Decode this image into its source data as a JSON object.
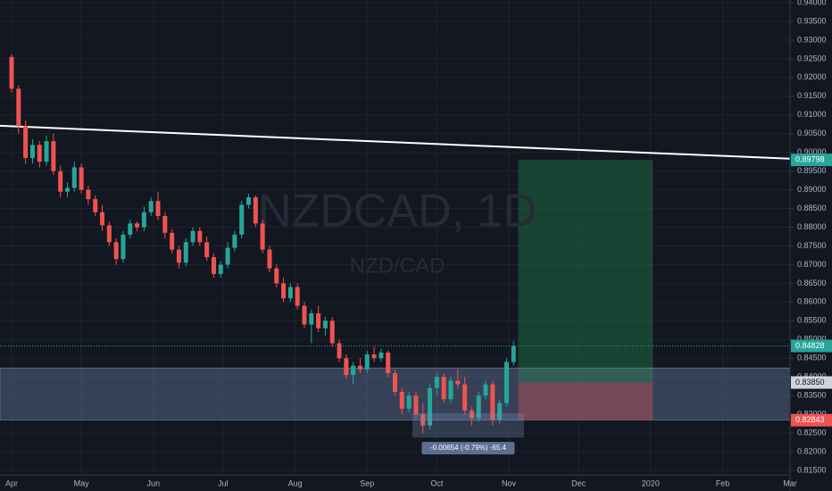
{
  "chart_data": {
    "type": "candlestick",
    "watermark": "NZDCAD, 1D",
    "watermark_sub": "NZD/CAD",
    "up_color": "#26a69a",
    "down_color": "#ef5350",
    "grid": true,
    "xlim": [
      -5,
      335
    ],
    "ylim": [
      0.815,
      0.94
    ],
    "xticks": [
      {
        "value": 0,
        "label": "Apr"
      },
      {
        "value": 30,
        "label": "May"
      },
      {
        "value": 61,
        "label": "Jun"
      },
      {
        "value": 91,
        "label": "Jul"
      },
      {
        "value": 122,
        "label": "Aug"
      },
      {
        "value": 153,
        "label": "Sep"
      },
      {
        "value": 183,
        "label": "Oct"
      },
      {
        "value": 214,
        "label": "Nov"
      },
      {
        "value": 244,
        "label": "Dec"
      },
      {
        "value": 275,
        "label": "2020"
      },
      {
        "value": 306,
        "label": "Feb"
      },
      {
        "value": 335,
        "label": "Mar"
      }
    ],
    "yticks": [
      {
        "value": 0.815,
        "label": "0.81500"
      },
      {
        "value": 0.82,
        "label": "0.82000"
      },
      {
        "value": 0.825,
        "label": "0.82500"
      },
      {
        "value": 0.83,
        "label": "0.83000"
      },
      {
        "value": 0.835,
        "label": "0.83500"
      },
      {
        "value": 0.84,
        "label": "0.84000"
      },
      {
        "value": 0.845,
        "label": "0.84500"
      },
      {
        "value": 0.85,
        "label": "0.85000"
      },
      {
        "value": 0.855,
        "label": "0.85500"
      },
      {
        "value": 0.86,
        "label": "0.86000"
      },
      {
        "value": 0.865,
        "label": "0.86500"
      },
      {
        "value": 0.87,
        "label": "0.87000"
      },
      {
        "value": 0.875,
        "label": "0.87500"
      },
      {
        "value": 0.88,
        "label": "0.88000"
      },
      {
        "value": 0.885,
        "label": "0.88500"
      },
      {
        "value": 0.89,
        "label": "0.89000"
      },
      {
        "value": 0.895,
        "label": "0.89500"
      },
      {
        "value": 0.9,
        "label": "0.90000"
      },
      {
        "value": 0.905,
        "label": "0.90500"
      },
      {
        "value": 0.91,
        "label": "0.91000"
      },
      {
        "value": 0.915,
        "label": "0.91500"
      },
      {
        "value": 0.92,
        "label": "0.92000"
      },
      {
        "value": 0.925,
        "label": "0.92500"
      },
      {
        "value": 0.93,
        "label": "0.93000"
      },
      {
        "value": 0.935,
        "label": "0.93500"
      },
      {
        "value": 0.94,
        "label": "0.94000"
      }
    ],
    "x": [
      0,
      3,
      6,
      9,
      12,
      15,
      18,
      21,
      24,
      27,
      30,
      33,
      36,
      39,
      42,
      45,
      48,
      51,
      54,
      57,
      60,
      63,
      66,
      69,
      72,
      75,
      78,
      81,
      84,
      87,
      90,
      93,
      96,
      99,
      102,
      105,
      108,
      111,
      114,
      117,
      120,
      123,
      126,
      129,
      132,
      135,
      138,
      141,
      144,
      147,
      150,
      153,
      156,
      159,
      162,
      165,
      168,
      171,
      174,
      177,
      180,
      183,
      186,
      189,
      192,
      195,
      198,
      201,
      204,
      207,
      210,
      213,
      216
    ],
    "open": [
      0.9255,
      0.917,
      0.907,
      0.8985,
      0.902,
      0.8975,
      0.903,
      0.895,
      0.8895,
      0.8905,
      0.896,
      0.89,
      0.8875,
      0.884,
      0.8805,
      0.876,
      0.8715,
      0.878,
      0.881,
      0.88,
      0.884,
      0.887,
      0.883,
      0.8785,
      0.874,
      0.8705,
      0.876,
      0.879,
      0.876,
      0.872,
      0.8675,
      0.87,
      0.8745,
      0.878,
      0.886,
      0.888,
      0.881,
      0.874,
      0.869,
      0.865,
      0.861,
      0.864,
      0.859,
      0.854,
      0.857,
      0.853,
      0.855,
      0.849,
      0.845,
      0.8405,
      0.843,
      0.842,
      0.846,
      0.845,
      0.8465,
      0.841,
      0.836,
      0.8315,
      0.835,
      0.83,
      0.827,
      0.837,
      0.84,
      0.834,
      0.839,
      0.838,
      0.831,
      0.829,
      0.835,
      0.838,
      0.8285,
      0.833,
      0.844
    ],
    "high": [
      0.9262,
      0.918,
      0.9085,
      0.9035,
      0.903,
      0.9045,
      0.905,
      0.8965,
      0.892,
      0.8975,
      0.897,
      0.891,
      0.8885,
      0.886,
      0.8815,
      0.877,
      0.879,
      0.882,
      0.8815,
      0.8855,
      0.888,
      0.8895,
      0.884,
      0.8795,
      0.875,
      0.877,
      0.88,
      0.88,
      0.8775,
      0.873,
      0.871,
      0.876,
      0.879,
      0.887,
      0.889,
      0.8885,
      0.882,
      0.875,
      0.87,
      0.8665,
      0.865,
      0.865,
      0.86,
      0.858,
      0.859,
      0.856,
      0.856,
      0.85,
      0.846,
      0.844,
      0.845,
      0.847,
      0.848,
      0.8475,
      0.847,
      0.842,
      0.837,
      0.836,
      0.836,
      0.833,
      0.838,
      0.841,
      0.841,
      0.84,
      0.842,
      0.84,
      0.832,
      0.836,
      0.839,
      0.839,
      0.834,
      0.845,
      0.8495
    ],
    "low": [
      0.916,
      0.905,
      0.897,
      0.897,
      0.896,
      0.8965,
      0.894,
      0.888,
      0.888,
      0.8895,
      0.889,
      0.886,
      0.883,
      0.879,
      0.875,
      0.87,
      0.8705,
      0.877,
      0.879,
      0.879,
      0.883,
      0.882,
      0.877,
      0.873,
      0.869,
      0.8695,
      0.875,
      0.875,
      0.871,
      0.8665,
      0.8665,
      0.869,
      0.8735,
      0.877,
      0.885,
      0.88,
      0.873,
      0.868,
      0.864,
      0.86,
      0.86,
      0.858,
      0.853,
      0.849,
      0.852,
      0.851,
      0.848,
      0.844,
      0.8395,
      0.838,
      0.841,
      0.841,
      0.844,
      0.844,
      0.84,
      0.835,
      0.83,
      0.8305,
      0.829,
      0.825,
      0.826,
      0.835,
      0.833,
      0.833,
      0.837,
      0.83,
      0.827,
      0.828,
      0.834,
      0.827,
      0.8275,
      0.832,
      0.843
    ],
    "close": [
      0.917,
      0.907,
      0.8985,
      0.902,
      0.8975,
      0.903,
      0.895,
      0.8895,
      0.8905,
      0.896,
      0.89,
      0.8875,
      0.884,
      0.8805,
      0.876,
      0.8715,
      0.878,
      0.881,
      0.88,
      0.884,
      0.887,
      0.883,
      0.8785,
      0.874,
      0.8705,
      0.876,
      0.879,
      0.876,
      0.872,
      0.8675,
      0.87,
      0.8745,
      0.878,
      0.886,
      0.888,
      0.881,
      0.874,
      0.869,
      0.865,
      0.861,
      0.864,
      0.859,
      0.854,
      0.857,
      0.853,
      0.855,
      0.849,
      0.845,
      0.8405,
      0.843,
      0.842,
      0.846,
      0.845,
      0.8465,
      0.841,
      0.836,
      0.8315,
      0.835,
      0.83,
      0.827,
      0.837,
      0.84,
      0.834,
      0.839,
      0.838,
      0.831,
      0.829,
      0.835,
      0.838,
      0.8285,
      0.833,
      0.844,
      0.84828
    ],
    "trendline": {
      "x": [
        -5,
        335
      ],
      "y": [
        0.9071,
        0.8983
      ],
      "color": "#ffffff"
    },
    "zone": {
      "low": 0.8285,
      "high": 0.8424
    },
    "position": {
      "x": [
        218,
        276
      ],
      "target": 0.89798,
      "entry": {
        "value": 0.8385,
        "label": "0.83850"
      },
      "stop": 0.82843
    },
    "last_price": 0.84828,
    "measure": {
      "x": [
        172.5,
        220.5
      ],
      "y": [
        0.8238,
        0.8303
      ],
      "label": "-0.00654 (-0.79%) -65.4"
    }
  }
}
